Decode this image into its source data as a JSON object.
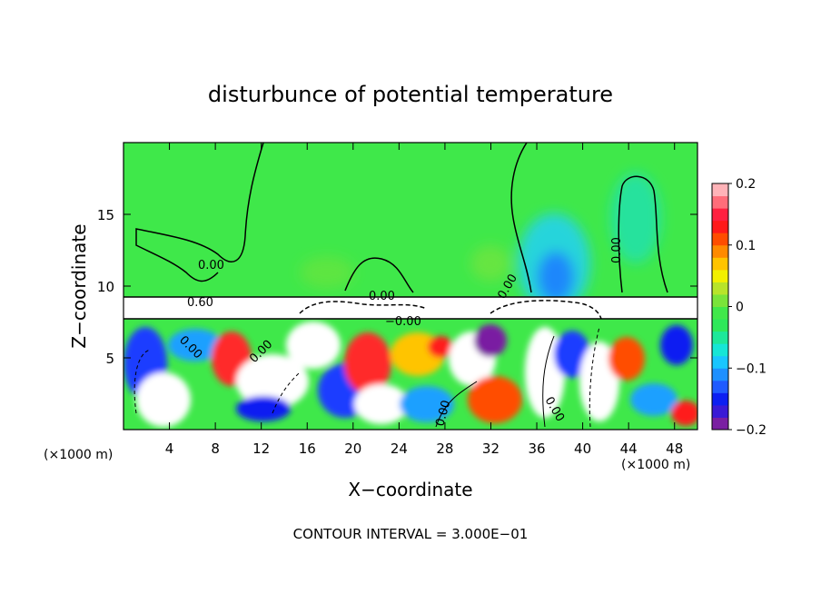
{
  "chart_data": {
    "type": "heatmap",
    "title": "disturbunce of potential temperature",
    "xlabel": "X−coordinate",
    "ylabel": "Z−coordinate",
    "x_unit": "(×1000 m)",
    "xlim": [
      0,
      50
    ],
    "ylim": [
      0,
      20
    ],
    "x_ticks": [
      4,
      8,
      12,
      16,
      20,
      24,
      28,
      32,
      36,
      40,
      44,
      48
    ],
    "y_ticks": [
      5,
      10,
      15
    ],
    "colorbar": {
      "range": [
        -0.2,
        0.2
      ],
      "ticks": [
        "0.2",
        "0.1",
        "0",
        "−0.1",
        "−0.2"
      ],
      "tick_values": [
        0.2,
        0.1,
        0,
        -0.1,
        -0.2
      ],
      "colors": [
        "#7a1fa2",
        "#3a1ad6",
        "#0c1ff2",
        "#1f5bff",
        "#1e90ff",
        "#19c6ff",
        "#16e6d6",
        "#1de89a",
        "#2ee85a",
        "#41e84a",
        "#7ae43a",
        "#b8e42a",
        "#f2f000",
        "#ffc400",
        "#ff8a00",
        "#ff4d00",
        "#ff1a1a",
        "#ff2040",
        "#ff6d7a",
        "#ffb3b8"
      ]
    },
    "contour_labels": [
      "0.00",
      "0.60",
      "0.00",
      "−0.00",
      "0.00",
      "0.00",
      "0.00",
      "0.00",
      "0.00",
      "0.00"
    ],
    "footer": "CONTOUR INTERVAL = 3.000E−01"
  }
}
